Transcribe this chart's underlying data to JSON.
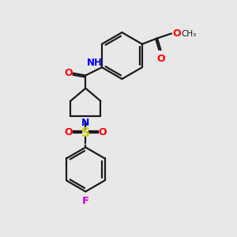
{
  "bg_color": "#e8e8e8",
  "bond_color": "#1a1a1a",
  "atom_colors": {
    "N": "#0000ff",
    "O": "#ff0000",
    "S": "#cccc00",
    "F": "#cc00cc",
    "H": "#808080",
    "C": "#1a1a1a"
  },
  "line_width": 1.6,
  "figsize": [
    3.0,
    3.0
  ],
  "dpi": 100
}
